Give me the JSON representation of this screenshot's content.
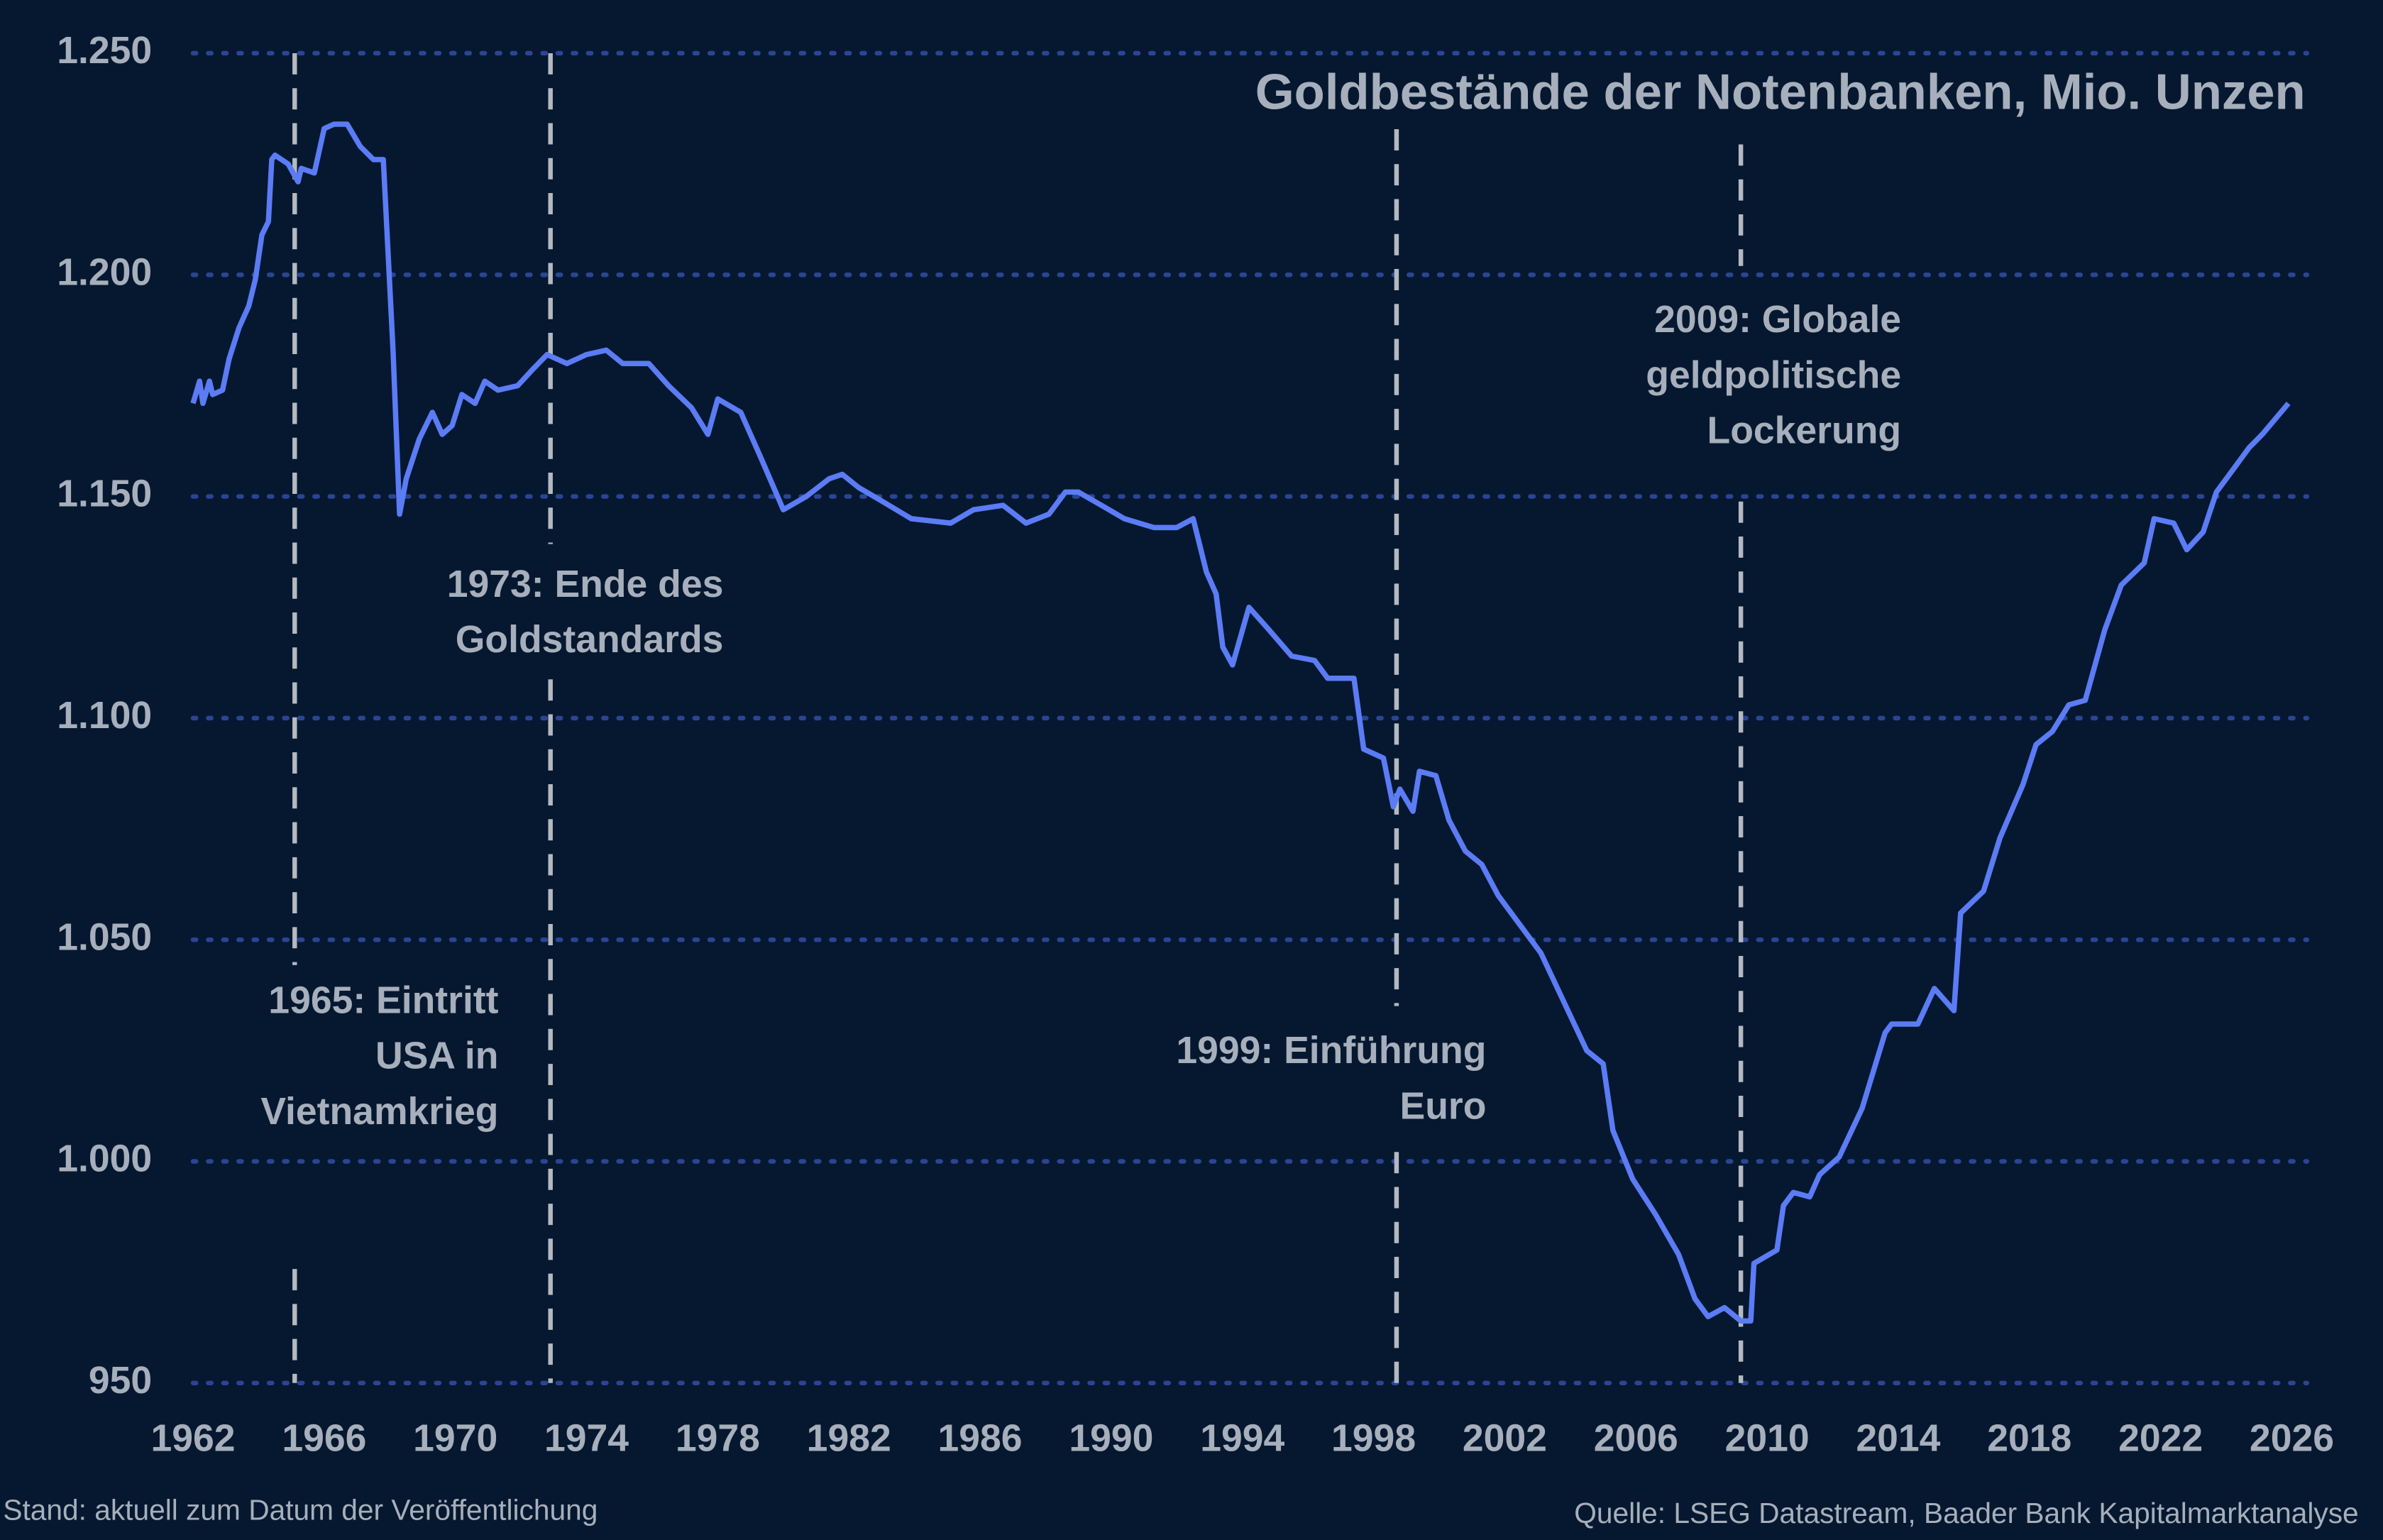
{
  "chart_data": {
    "type": "line",
    "title": "Goldbestände der Notenbanken, Mio. Unzen",
    "footnote": "Stand: aktuell zum Datum der Veröffentlichung",
    "source": "Quelle: LSEG Datastream, Baader Bank Kapitalmarktanalyse",
    "grid": true,
    "xlim": [
      1962,
      2026
    ],
    "xticks": [
      1962,
      1966,
      1970,
      1974,
      1978,
      1982,
      1986,
      1990,
      1994,
      1998,
      2002,
      2006,
      2010,
      2014,
      2018,
      2022,
      2026
    ],
    "ylim": [
      950,
      1250
    ],
    "yticks": [
      950,
      {
        "value": 1000,
        "label": "1.000"
      },
      {
        "value": 1050,
        "label": "1.050"
      },
      {
        "value": 1100,
        "label": "1.100"
      },
      {
        "value": 1150,
        "label": "1.150"
      },
      {
        "value": 1200,
        "label": "1.200"
      },
      {
        "value": 1250,
        "label": "1.250"
      }
    ],
    "annotations": [
      {
        "x": 1965.1,
        "text": [
          "1965: Eintritt",
          "USA in",
          "Vietnamkrieg"
        ]
      },
      {
        "x": 1972.9,
        "text": [
          "1973: Ende des",
          "Goldstandards"
        ]
      },
      {
        "x": 1998.7,
        "text": [
          "1999: Einführung",
          "Euro"
        ]
      },
      {
        "x": 2009.2,
        "text": [
          "2009: Globale",
          "geldpolitische",
          "Lockerung"
        ]
      }
    ],
    "series": [
      {
        "color": "#5b7cf5",
        "x": [
          1962.0,
          1962.2,
          1962.3,
          1962.5,
          1962.6,
          1962.9,
          1963.1,
          1963.4,
          1963.7,
          1963.9,
          1964.1,
          1964.3,
          1964.4,
          1964.5,
          1964.9,
          1965.2,
          1965.3,
          1965.7,
          1966.0,
          1966.3,
          1966.7,
          1967.1,
          1967.5,
          1967.8,
          1968.1,
          1968.3,
          1968.5,
          1968.9,
          1969.3,
          1969.6,
          1969.9,
          1970.2,
          1970.6,
          1970.9,
          1971.3,
          1971.9,
          1972.4,
          1972.8,
          1973.4,
          1974.0,
          1974.6,
          1975.1,
          1975.9,
          1976.5,
          1977.2,
          1977.7,
          1978.0,
          1978.7,
          1979.3,
          1980.0,
          1980.7,
          1981.4,
          1981.8,
          1982.3,
          1983.0,
          1983.9,
          1985.1,
          1985.8,
          1986.7,
          1987.4,
          1988.1,
          1988.6,
          1989.0,
          1989.7,
          1990.4,
          1991.3,
          1992.0,
          1992.5,
          1992.9,
          1993.2,
          1993.4,
          1993.7,
          1994.2,
          1994.8,
          1995.5,
          1996.2,
          1996.6,
          1997.4,
          1997.7,
          1998.3,
          1998.6,
          1998.8,
          1999.2,
          1999.4,
          1999.9,
          2000.3,
          2000.8,
          2001.3,
          2001.8,
          2002.2,
          2002.7,
          2003.1,
          2003.8,
          2004.5,
          2005.0,
          2005.3,
          2005.9,
          2006.6,
          2007.3,
          2007.8,
          2008.2,
          2008.7,
          2009.2,
          2009.5,
          2009.6,
          2010.3,
          2010.5,
          2010.8,
          2011.3,
          2011.6,
          2012.2,
          2012.9,
          2013.6,
          2013.8,
          2014.6,
          2015.1,
          2015.7,
          2015.9,
          2016.6,
          2017.1,
          2017.8,
          2018.2,
          2018.7,
          2019.2,
          2019.7,
          2020.3,
          2020.8,
          2021.5,
          2021.8,
          2022.4,
          2022.8,
          2023.3,
          2023.7,
          2024.2,
          2024.7,
          2025.1,
          2025.9
        ],
        "values": [
          1171,
          1176,
          1171,
          1176,
          1173,
          1174,
          1181,
          1188,
          1193,
          1199,
          1209,
          1212,
          1226,
          1227,
          1225,
          1221,
          1224,
          1223,
          1233,
          1234,
          1234,
          1229,
          1226,
          1226,
          1183,
          1146,
          1154,
          1163,
          1169,
          1164,
          1166,
          1173,
          1171,
          1176,
          1174,
          1175,
          1179,
          1182,
          1180,
          1182,
          1183,
          1180,
          1180,
          1175,
          1170,
          1164,
          1172,
          1169,
          1159,
          1147,
          1150,
          1154,
          1155,
          1152,
          1149,
          1145,
          1144,
          1147,
          1148,
          1144,
          1146,
          1151,
          1151,
          1148,
          1145,
          1143,
          1143,
          1145,
          1133,
          1128,
          1116,
          1112,
          1125,
          1120,
          1114,
          1113,
          1109,
          1109,
          1093,
          1091,
          1080,
          1084,
          1079,
          1088,
          1087,
          1077,
          1070,
          1067,
          1060,
          1056,
          1051,
          1047,
          1036,
          1025,
          1022,
          1007,
          996,
          988,
          979,
          969,
          965,
          967,
          964,
          964,
          977,
          980,
          990,
          993,
          992,
          997,
          1001,
          1012,
          1029,
          1031,
          1031,
          1039,
          1034,
          1056,
          1061,
          1073,
          1085,
          1094,
          1097,
          1103,
          1104,
          1120,
          1130,
          1135,
          1145,
          1144,
          1138,
          1142,
          1151,
          1156,
          1161,
          1164,
          1171
        ]
      }
    ]
  }
}
